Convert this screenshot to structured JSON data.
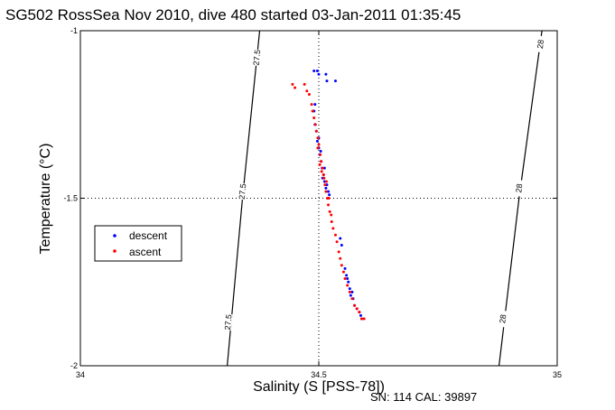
{
  "chart_data": {
    "type": "scatter",
    "title": "SG502 RossSea Nov 2010, dive 480 started 03-Jan-2011 01:35:45",
    "xlabel": "Salinity (S [PSS-78])",
    "ylabel": "Temperature (°C)",
    "xlim": [
      34,
      35
    ],
    "ylim": [
      -2,
      -1
    ],
    "x_ticks": [
      "34",
      "34.5",
      "35"
    ],
    "y_ticks": [
      "-1",
      "-1.5",
      "-2"
    ],
    "grid": "dotted at 34.5 and -1.5",
    "legend": {
      "placement": "left-middle",
      "entries": [
        "descent",
        "ascent"
      ]
    },
    "footnote": "SN: 114  CAL: 39897",
    "contours": [
      {
        "label": "27.5",
        "points": [
          [
            34.376,
            -1.0
          ],
          [
            34.34,
            -1.5
          ],
          [
            34.308,
            -2.0
          ]
        ],
        "label_positions": [
          [
            34.37,
            -1.08
          ],
          [
            34.34,
            -1.48
          ],
          [
            34.31,
            -1.87
          ]
        ]
      },
      {
        "label": "28",
        "points": [
          [
            34.968,
            -1.0
          ],
          [
            34.92,
            -1.5
          ],
          [
            34.878,
            -2.0
          ]
        ],
        "label_positions": [
          [
            34.965,
            -1.04
          ],
          [
            34.92,
            -1.47
          ],
          [
            34.886,
            -1.86
          ]
        ]
      }
    ],
    "series": [
      {
        "name": "descent",
        "color": "#0000ff",
        "points": [
          [
            34.49,
            -1.12
          ],
          [
            34.497,
            -1.12
          ],
          [
            34.515,
            -1.13
          ],
          [
            34.517,
            -1.15
          ],
          [
            34.535,
            -1.15
          ],
          [
            34.5,
            -1.13
          ],
          [
            34.492,
            -1.22
          ],
          [
            34.49,
            -1.24
          ],
          [
            34.492,
            -1.28
          ],
          [
            34.495,
            -1.3
          ],
          [
            34.497,
            -1.33
          ],
          [
            34.5,
            -1.35
          ],
          [
            34.502,
            -1.37
          ],
          [
            34.505,
            -1.39
          ],
          [
            34.507,
            -1.41
          ],
          [
            34.51,
            -1.43
          ],
          [
            34.512,
            -1.45
          ],
          [
            34.515,
            -1.47
          ],
          [
            34.517,
            -1.46
          ],
          [
            34.52,
            -1.48
          ],
          [
            34.522,
            -1.49
          ],
          [
            34.508,
            -1.44
          ],
          [
            34.512,
            -1.41
          ],
          [
            34.504,
            -1.36
          ],
          [
            34.5,
            -1.32
          ],
          [
            34.545,
            -1.62
          ],
          [
            34.548,
            -1.64
          ],
          [
            34.555,
            -1.71
          ],
          [
            34.558,
            -1.73
          ],
          [
            34.562,
            -1.75
          ],
          [
            34.565,
            -1.77
          ],
          [
            34.567,
            -1.79
          ],
          [
            34.572,
            -1.8
          ],
          [
            34.575,
            -1.82
          ],
          [
            34.58,
            -1.83
          ],
          [
            34.585,
            -1.84
          ],
          [
            34.588,
            -1.85
          ],
          [
            34.59,
            -1.86
          ],
          [
            34.57,
            -1.78
          ],
          [
            34.56,
            -1.74
          ]
        ]
      },
      {
        "name": "ascent",
        "color": "#ff0000",
        "points": [
          [
            34.445,
            -1.16
          ],
          [
            34.45,
            -1.17
          ],
          [
            34.47,
            -1.16
          ],
          [
            34.475,
            -1.18
          ],
          [
            34.48,
            -1.19
          ],
          [
            34.485,
            -1.22
          ],
          [
            34.487,
            -1.24
          ],
          [
            34.49,
            -1.26
          ],
          [
            34.493,
            -1.28
          ],
          [
            34.495,
            -1.3
          ],
          [
            34.498,
            -1.32
          ],
          [
            34.5,
            -1.34
          ],
          [
            34.503,
            -1.37
          ],
          [
            34.505,
            -1.39
          ],
          [
            34.508,
            -1.41
          ],
          [
            34.51,
            -1.43
          ],
          [
            34.513,
            -1.46
          ],
          [
            34.515,
            -1.48
          ],
          [
            34.518,
            -1.5
          ],
          [
            34.52,
            -1.52
          ],
          [
            34.523,
            -1.54
          ],
          [
            34.527,
            -1.57
          ],
          [
            34.53,
            -1.59
          ],
          [
            34.535,
            -1.61
          ],
          [
            34.538,
            -1.63
          ],
          [
            34.542,
            -1.66
          ],
          [
            34.545,
            -1.68
          ],
          [
            34.548,
            -1.7
          ],
          [
            34.552,
            -1.72
          ],
          [
            34.555,
            -1.74
          ],
          [
            34.56,
            -1.76
          ],
          [
            34.565,
            -1.78
          ],
          [
            34.57,
            -1.8
          ],
          [
            34.575,
            -1.82
          ],
          [
            34.58,
            -1.83
          ],
          [
            34.585,
            -1.84
          ],
          [
            34.59,
            -1.86
          ],
          [
            34.595,
            -1.86
          ],
          [
            34.498,
            -1.35
          ],
          [
            34.502,
            -1.4
          ],
          [
            34.506,
            -1.42
          ],
          [
            34.511,
            -1.44
          ],
          [
            34.516,
            -1.45
          ],
          [
            34.521,
            -1.5
          ],
          [
            34.526,
            -1.55
          ]
        ]
      }
    ]
  }
}
